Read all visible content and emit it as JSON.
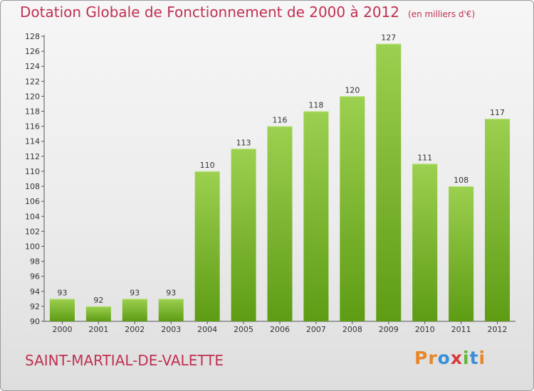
{
  "chart_data": {
    "type": "bar",
    "title": "Dotation Globale de Fonctionnement de 2000 à 2012",
    "subtitle": "(en milliers d'€)",
    "xlabel": "",
    "ylabel": "",
    "categories": [
      "2000",
      "2001",
      "2002",
      "2003",
      "2004",
      "2005",
      "2006",
      "2007",
      "2008",
      "2009",
      "2010",
      "2011",
      "2012"
    ],
    "values": [
      93,
      92,
      93,
      93,
      110,
      113,
      116,
      118,
      120,
      127,
      111,
      108,
      117
    ],
    "ylim": [
      90,
      128
    ],
    "yticks": [
      "90",
      "92",
      "94",
      "96",
      "98",
      "100",
      "102",
      "104",
      "106",
      "108",
      "110",
      "112",
      "114",
      "116",
      "118",
      "120",
      "122",
      "124",
      "126",
      "128"
    ],
    "grid": false,
    "bar_color_top": "#9cd050",
    "bar_color_bottom": "#5e9c14"
  },
  "footer": {
    "commune": "SAINT-MARTIAL-DE-VALETTE",
    "logo_letters": [
      "P",
      "r",
      "o",
      "x",
      "i",
      "t",
      "i"
    ],
    "logo_colors": [
      "#e8862a",
      "#e8862a",
      "#3b8fd6",
      "#d63b3b",
      "#5cb832",
      "#3b8fd6",
      "#e8862a"
    ]
  },
  "colors": {
    "title": "#c03050",
    "axis": "#555555"
  }
}
